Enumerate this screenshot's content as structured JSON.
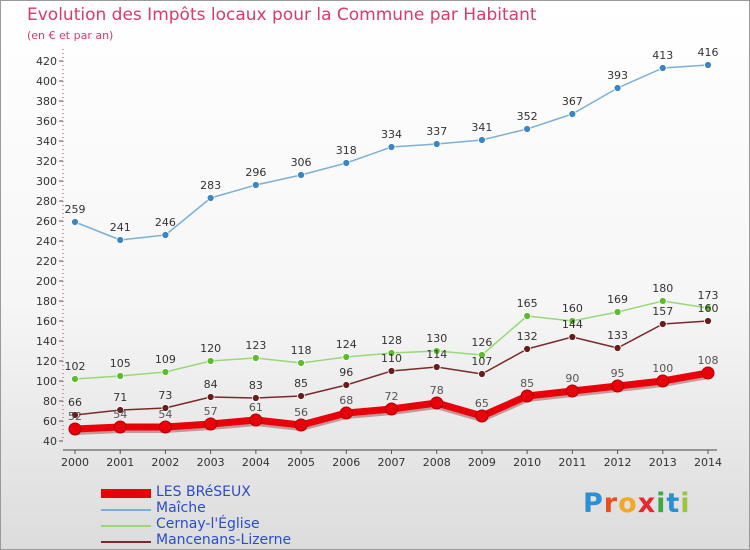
{
  "title": "Evolution des Impôts locaux pour la Commune par Habitant",
  "subtitle": "(en € et par an)",
  "logo": {
    "parts": [
      {
        "text": "P",
        "color": "#2a8fd6"
      },
      {
        "text": "r",
        "color": "#e84f1c"
      },
      {
        "text": "o",
        "color": "#f5a623"
      },
      {
        "text": "x",
        "color": "#e8262b"
      },
      {
        "text": "i",
        "color": "#3caa3c"
      },
      {
        "text": "t",
        "color": "#2a8fd6"
      },
      {
        "text": "i",
        "color": "#9bc53d"
      }
    ]
  },
  "chart_data": {
    "type": "line",
    "x": [
      "2000",
      "2001",
      "2002",
      "2003",
      "2004",
      "2005",
      "2006",
      "2007",
      "2008",
      "2009",
      "2010",
      "2011",
      "2012",
      "2013",
      "2014"
    ],
    "ylim": [
      40,
      420
    ],
    "yticks": [
      40,
      60,
      80,
      100,
      120,
      140,
      160,
      180,
      200,
      220,
      240,
      260,
      280,
      300,
      320,
      340,
      360,
      380,
      400,
      420
    ],
    "grid": false,
    "legend_position": "bottom-left",
    "series": [
      {
        "name": "LES BRéSEUX",
        "color": "#e8000b",
        "marker": "#e8000b",
        "labelColor": "#555555",
        "width": 7,
        "values": [
          52,
          54,
          54,
          57,
          61,
          56,
          68,
          72,
          78,
          65,
          85,
          90,
          95,
          100,
          108
        ]
      },
      {
        "name": "Maîche",
        "color": "#7bafd8",
        "marker": "#3a85c4",
        "labelColor": "#333333",
        "width": 1.5,
        "values": [
          259,
          241,
          246,
          283,
          296,
          306,
          318,
          334,
          337,
          341,
          352,
          367,
          393,
          413,
          416
        ]
      },
      {
        "name": "Cernay-l'Église",
        "color": "#98d878",
        "marker": "#5cbc2c",
        "labelColor": "#333333",
        "width": 1.5,
        "values": [
          102,
          105,
          109,
          120,
          123,
          118,
          124,
          128,
          130,
          126,
          165,
          160,
          169,
          180,
          173
        ]
      },
      {
        "name": "Mancenans-Lizerne",
        "color": "#7a2a2a",
        "marker": "#6a1c1c",
        "labelColor": "#333333",
        "width": 1.5,
        "values": [
          66,
          71,
          73,
          84,
          83,
          85,
          96,
          110,
          114,
          107,
          132,
          144,
          133,
          157,
          160
        ]
      }
    ]
  }
}
